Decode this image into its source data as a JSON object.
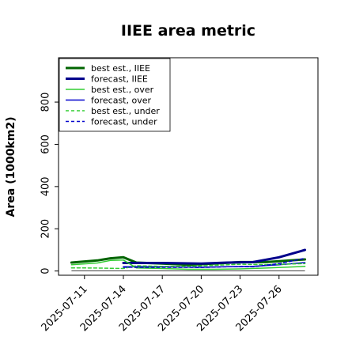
{
  "chart_data": {
    "type": "line",
    "title": "IIEE area metric",
    "ylabel": "Area (1000km2)",
    "xlabel": "",
    "ylim": [
      -20,
      1010
    ],
    "yticks": [
      0,
      200,
      400,
      600,
      800
    ],
    "xlim": [
      "2025-07-09",
      "2025-07-29"
    ],
    "xticks": [
      "2025-07-11",
      "2025-07-14",
      "2025-07-17",
      "2025-07-20",
      "2025-07-23",
      "2025-07-26"
    ],
    "xtick_colors": [
      "#000000",
      "#000000",
      "#228B22",
      "#000000",
      "#000000",
      "#000000"
    ],
    "legend_position": "upper-left",
    "grid": false,
    "series": [
      {
        "name": "best est., IIEE",
        "color": "#006400",
        "style": "solid",
        "width": "thick",
        "x": [
          "2025-07-10",
          "2025-07-12",
          "2025-07-13",
          "2025-07-14",
          "2025-07-15",
          "2025-07-17",
          "2025-07-19",
          "2025-07-21",
          "2025-07-23",
          "2025-07-25",
          "2025-07-28"
        ],
        "values": [
          40,
          50,
          60,
          65,
          40,
          35,
          30,
          35,
          42,
          42,
          55
        ]
      },
      {
        "name": "forecast, IIEE",
        "color": "#00008B",
        "style": "solid",
        "width": "thick",
        "x": [
          "2025-07-14",
          "2025-07-17",
          "2025-07-20",
          "2025-07-22",
          "2025-07-24",
          "2025-07-26",
          "2025-07-28"
        ],
        "values": [
          38,
          38,
          35,
          40,
          42,
          65,
          100
        ]
      },
      {
        "name": "best est., over",
        "color": "#32CD32",
        "style": "solid",
        "width": "thin",
        "x": [
          "2025-07-10",
          "2025-07-12",
          "2025-07-13",
          "2025-07-14",
          "2025-07-15",
          "2025-07-17",
          "2025-07-19",
          "2025-07-21",
          "2025-07-23",
          "2025-07-25",
          "2025-07-28"
        ],
        "values": [
          30,
          38,
          50,
          52,
          15,
          12,
          8,
          8,
          10,
          14,
          22
        ]
      },
      {
        "name": "forecast, over",
        "color": "#0000CD",
        "style": "solid",
        "width": "thin",
        "x": [
          "2025-07-14",
          "2025-07-17",
          "2025-07-20",
          "2025-07-22",
          "2025-07-24",
          "2025-07-26",
          "2025-07-28"
        ],
        "values": [
          20,
          20,
          18,
          20,
          22,
          30,
          40
        ]
      },
      {
        "name": "best est., under",
        "color": "#32CD32",
        "style": "dashed",
        "width": "thin",
        "x": [
          "2025-07-10",
          "2025-07-12",
          "2025-07-14",
          "2025-07-15",
          "2025-07-17",
          "2025-07-19",
          "2025-07-21",
          "2025-07-23",
          "2025-07-25",
          "2025-07-28"
        ],
        "values": [
          15,
          14,
          12,
          25,
          22,
          22,
          27,
          32,
          30,
          35
        ]
      },
      {
        "name": "forecast, under",
        "color": "#0000CD",
        "style": "dashed",
        "width": "thin",
        "x": [
          "2025-07-14",
          "2025-07-17",
          "2025-07-20",
          "2025-07-22",
          "2025-07-24",
          "2025-07-26",
          "2025-07-28"
        ],
        "values": [
          18,
          18,
          17,
          20,
          20,
          35,
          60
        ]
      }
    ]
  }
}
